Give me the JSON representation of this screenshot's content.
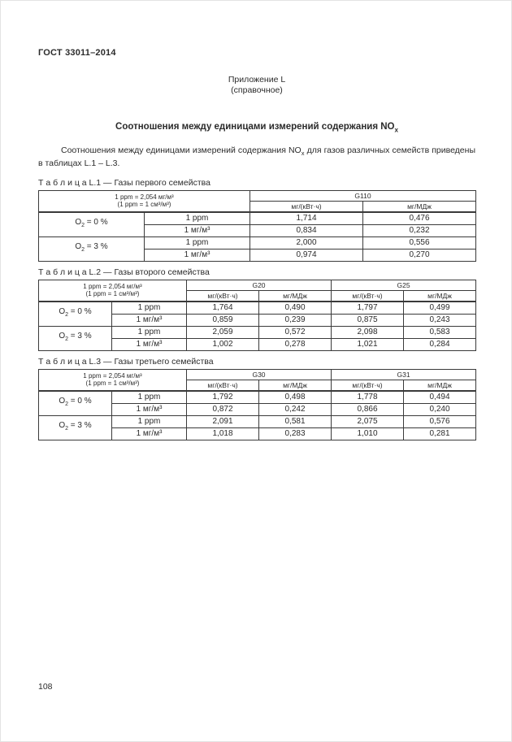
{
  "page": {
    "doc_number": "ГОСТ 33011–2014",
    "appendix_label": "Приложение L",
    "appendix_note": "(справочное)",
    "title_pre": "Соотношения между единицами измерений содержания NO",
    "title_subscript": "x",
    "intro_pre": "Соотношения между единицами измерений содержания NO",
    "intro_subscript": "x",
    "intro_post": " для газов различных семейств приведены в таблицах L.1 – L.3.",
    "page_number": "108"
  },
  "tables": [
    {
      "caption": "Т а б л и ц а  L.1 — Газы первого семейства",
      "note_line1": "1 ppm = 2,054 мг/м³",
      "note_line2": "(1 ppm = 1 см³/м³)",
      "gas_groups": [
        "G110"
      ],
      "unit_headers": [
        "мг/(кВт·ч)",
        "мг/МДж"
      ],
      "o2_levels": [
        {
          "element": "O",
          "subscript": "2",
          "condition": " = 0 %"
        },
        {
          "element": "O",
          "subscript": "2",
          "condition": " = 3 %"
        }
      ],
      "rows": [
        {
          "unit": "1 ppm",
          "values": [
            "1,714",
            "0,476"
          ]
        },
        {
          "unit": "1 мг/м³",
          "values": [
            "0,834",
            "0,232"
          ]
        },
        {
          "unit": "1 ppm",
          "values": [
            "2,000",
            "0,556"
          ]
        },
        {
          "unit": "1 мг/м³",
          "values": [
            "0,974",
            "0,270"
          ]
        }
      ]
    },
    {
      "caption": "Т а б л и ц а  L.2 — Газы второго семейства",
      "note_line1": "1 ppm = 2,054 мг/м³",
      "note_line2": "(1 ppm = 1 см³/м³)",
      "gas_groups": [
        "G20",
        "G25"
      ],
      "unit_headers": [
        "мг/(кВт·ч)",
        "мг/МДж",
        "мг/(кВт·ч)",
        "мг/МДж"
      ],
      "o2_levels": [
        {
          "element": "O",
          "subscript": "2",
          "condition": " = 0 %"
        },
        {
          "element": "O",
          "subscript": "2",
          "condition": " = 3 %"
        }
      ],
      "rows": [
        {
          "unit": "1 ppm",
          "values": [
            "1,764",
            "0,490",
            "1,797",
            "0,499"
          ]
        },
        {
          "unit": "1 мг/м³",
          "values": [
            "0,859",
            "0,239",
            "0,875",
            "0,243"
          ]
        },
        {
          "unit": "1 ppm",
          "values": [
            "2,059",
            "0,572",
            "2,098",
            "0,583"
          ]
        },
        {
          "unit": "1 мг/м³",
          "values": [
            "1,002",
            "0,278",
            "1,021",
            "0,284"
          ]
        }
      ]
    },
    {
      "caption": "Т а б л и ц а  L.3 — Газы третьего семейства",
      "note_line1": "1 ppm = 2,054 мг/м³",
      "note_line2": "(1 ppm = 1 см³/м³)",
      "gas_groups": [
        "G30",
        "G31"
      ],
      "unit_headers": [
        "мг/(кВт·ч)",
        "мг/МДж",
        "мг/(кВт·ч)",
        "мг/МДж"
      ],
      "o2_levels": [
        {
          "element": "O",
          "subscript": "2",
          "condition": " = 0 %"
        },
        {
          "element": "O",
          "subscript": "2",
          "condition": " = 3 %"
        }
      ],
      "rows": [
        {
          "unit": "1 ppm",
          "values": [
            "1,792",
            "0,498",
            "1,778",
            "0,494"
          ]
        },
        {
          "unit": "1 мг/м³",
          "values": [
            "0,872",
            "0,242",
            "0,866",
            "0,240"
          ]
        },
        {
          "unit": "1 ppm",
          "values": [
            "2,091",
            "0,581",
            "2,075",
            "0,576"
          ]
        },
        {
          "unit": "1 мг/м³",
          "values": [
            "1,018",
            "0,283",
            "1,010",
            "0,281"
          ]
        }
      ]
    }
  ]
}
